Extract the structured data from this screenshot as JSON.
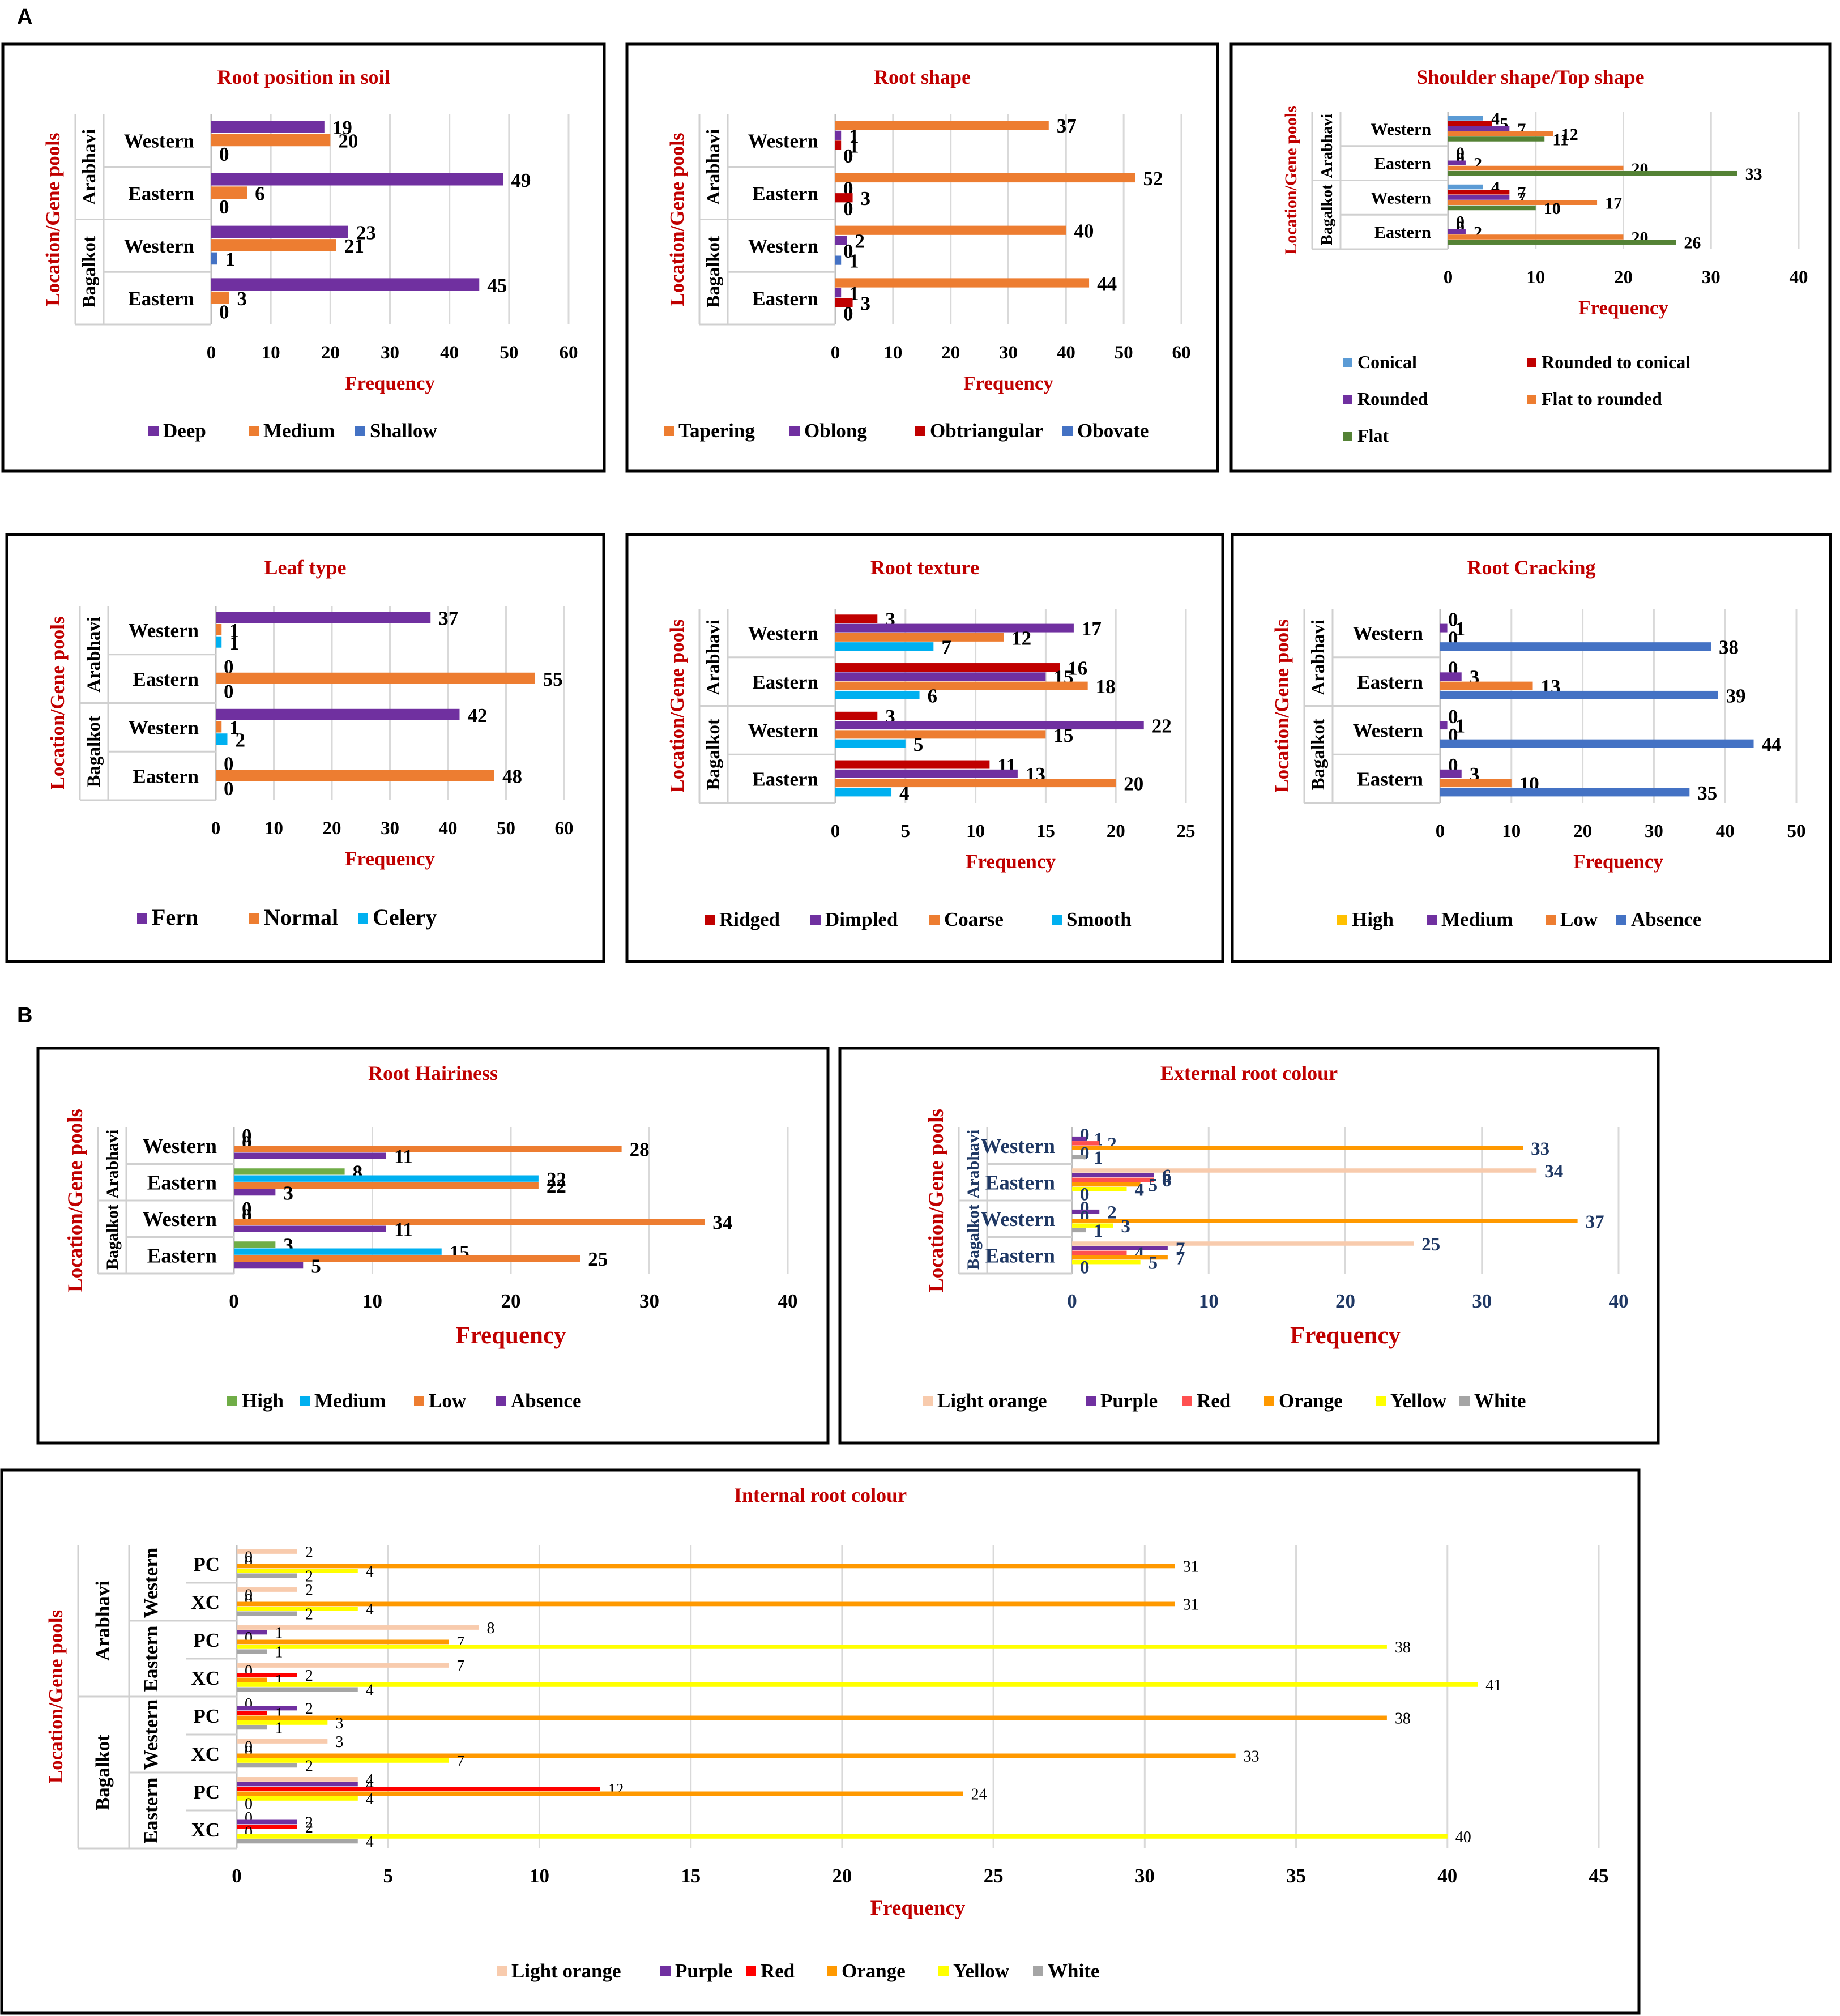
{
  "panels": [
    {
      "label": "A"
    },
    {
      "label": "B"
    }
  ],
  "colors": {
    "title": "#C00000",
    "ylabel": "#C00000",
    "xlabel": "#C00000",
    "ylabel_blue": "#1F3864",
    "grid": "#D9D9D9"
  },
  "chart_data": [
    {
      "id": "root_position",
      "type": "bar",
      "orientation": "horizontal",
      "title": "Root position in soil",
      "xlabel": "Frequency",
      "ylabel": "Location/Gene pools",
      "groups": [
        "Arabhavi",
        "Bagalkot"
      ],
      "categories": [
        "Western",
        "Eastern",
        "Western",
        "Eastern"
      ],
      "xlim": [
        0,
        60
      ],
      "xticks": [
        0,
        10,
        20,
        30,
        40,
        50,
        60
      ],
      "series": [
        {
          "name": "Deep",
          "color": "#7030A0",
          "values": [
            19,
            49,
            23,
            45
          ]
        },
        {
          "name": "Medium",
          "color": "#ED7D31",
          "values": [
            20,
            6,
            21,
            3
          ]
        },
        {
          "name": "Shallow",
          "color": "#4472C4",
          "values": [
            0,
            0,
            1,
            0
          ]
        }
      ]
    },
    {
      "id": "root_shape",
      "type": "bar",
      "orientation": "horizontal",
      "title": "Root shape",
      "xlabel": "Frequency",
      "ylabel": "Location/Gene pools",
      "groups": [
        "Arabhavi",
        "Bagalkot"
      ],
      "categories": [
        "Western",
        "Eastern",
        "Western",
        "Eastern"
      ],
      "xlim": [
        0,
        60
      ],
      "xticks": [
        0,
        10,
        20,
        30,
        40,
        50,
        60
      ],
      "series": [
        {
          "name": "Tapering",
          "color": "#ED7D31",
          "values": [
            37,
            52,
            40,
            44
          ]
        },
        {
          "name": "Oblong",
          "color": "#7030A0",
          "values": [
            1,
            0,
            2,
            1
          ]
        },
        {
          "name": "Obtriangular",
          "color": "#C00000",
          "values": [
            1,
            3,
            0,
            3
          ]
        },
        {
          "name": "Obovate",
          "color": "#4472C4",
          "values": [
            0,
            0,
            1,
            0
          ]
        }
      ]
    },
    {
      "id": "shoulder_shape",
      "type": "bar",
      "orientation": "horizontal",
      "title": "Shoulder shape/Top shape",
      "xlabel": "Frequency",
      "ylabel": "Location/Gene pools",
      "groups": [
        "Arabhavi",
        "Bagalkot"
      ],
      "categories": [
        "Western",
        "Eastern",
        "Western",
        "Eastern"
      ],
      "xlim": [
        0,
        40
      ],
      "xticks": [
        0,
        10,
        20,
        30,
        40
      ],
      "series": [
        {
          "name": "Conical",
          "color": "#5B9BD5",
          "values": [
            4,
            0,
            4,
            0
          ]
        },
        {
          "name": "Rounded to conical",
          "color": "#C00000",
          "values": [
            5,
            0,
            7,
            0
          ]
        },
        {
          "name": "Rounded",
          "color": "#7030A0",
          "values": [
            7,
            2,
            7,
            2
          ]
        },
        {
          "name": "Flat to rounded",
          "color": "#ED7D31",
          "values": [
            12,
            20,
            17,
            20
          ]
        },
        {
          "name": "Flat",
          "color": "#548235",
          "values": [
            11,
            33,
            10,
            26
          ]
        }
      ]
    },
    {
      "id": "leaf_type",
      "type": "bar",
      "orientation": "horizontal",
      "title": "Leaf type",
      "xlabel": "Frequency",
      "ylabel": "Location/Gene pools",
      "groups": [
        "Arabhavi",
        "Bagalkot"
      ],
      "categories": [
        "Western",
        "Eastern",
        "Western",
        "Eastern"
      ],
      "xlim": [
        0,
        60
      ],
      "xticks": [
        0,
        10,
        20,
        30,
        40,
        50,
        60
      ],
      "series": [
        {
          "name": "Fern",
          "color": "#7030A0",
          "values": [
            37,
            0,
            42,
            0
          ]
        },
        {
          "name": "Normal",
          "color": "#ED7D31",
          "values": [
            1,
            55,
            1,
            48
          ]
        },
        {
          "name": "Celery",
          "color": "#00B0F0",
          "values": [
            1,
            0,
            2,
            0
          ]
        }
      ]
    },
    {
      "id": "root_texture",
      "type": "bar",
      "orientation": "horizontal",
      "title": "Root texture",
      "xlabel": "Frequency",
      "ylabel": "Location/Gene pools",
      "groups": [
        "Arabhavi",
        "Bagalkot"
      ],
      "categories": [
        "Western",
        "Eastern",
        "Western",
        "Eastern"
      ],
      "xlim": [
        0,
        25
      ],
      "xticks": [
        0,
        5,
        10,
        15,
        20,
        25
      ],
      "series": [
        {
          "name": "Ridged",
          "color": "#C00000",
          "values": [
            3,
            16,
            3,
            11
          ]
        },
        {
          "name": "Dimpled",
          "color": "#7030A0",
          "values": [
            17,
            15,
            22,
            13
          ]
        },
        {
          "name": "Coarse",
          "color": "#ED7D31",
          "values": [
            12,
            18,
            15,
            20
          ]
        },
        {
          "name": "Smooth",
          "color": "#00B0F0",
          "values": [
            7,
            6,
            5,
            4
          ]
        }
      ]
    },
    {
      "id": "root_cracking",
      "type": "bar",
      "orientation": "horizontal",
      "title": "Root Cracking",
      "xlabel": "Frequency",
      "ylabel": "Location/Gene pools",
      "groups": [
        "Arabhavi",
        "Bagalkot"
      ],
      "categories": [
        "Western",
        "Eastern",
        "Western",
        "Eastern"
      ],
      "xlim": [
        0,
        50
      ],
      "xticks": [
        0,
        10,
        20,
        30,
        40,
        50
      ],
      "series": [
        {
          "name": "High",
          "color": "#FFC000",
          "values": [
            0,
            0,
            0,
            0
          ]
        },
        {
          "name": "Medium",
          "color": "#7030A0",
          "values": [
            1,
            3,
            1,
            3
          ]
        },
        {
          "name": "Low",
          "color": "#ED7D31",
          "values": [
            0,
            13,
            0,
            10
          ]
        },
        {
          "name": "Absence",
          "color": "#4472C4",
          "values": [
            38,
            39,
            44,
            35
          ]
        }
      ]
    },
    {
      "id": "root_hairiness",
      "type": "bar",
      "orientation": "horizontal",
      "title": "Root Hairiness",
      "xlabel": "Frequency",
      "ylabel": "Location/Gene pools",
      "groups": [
        "Arabhavi",
        "Bagalkot"
      ],
      "categories": [
        "Western",
        "Eastern",
        "Western",
        "Eastern"
      ],
      "xlim": [
        0,
        40
      ],
      "xticks": [
        0,
        10,
        20,
        30,
        40
      ],
      "series": [
        {
          "name": "High",
          "color": "#70AD47",
          "values": [
            0,
            8,
            0,
            3
          ]
        },
        {
          "name": "Medium",
          "color": "#00B0F0",
          "values": [
            0,
            22,
            0,
            15
          ]
        },
        {
          "name": "Low",
          "color": "#ED7D31",
          "values": [
            28,
            22,
            34,
            25
          ]
        },
        {
          "name": "Absence",
          "color": "#7030A0",
          "values": [
            11,
            3,
            11,
            5
          ]
        }
      ]
    },
    {
      "id": "external_colour",
      "type": "bar",
      "orientation": "horizontal",
      "title": "External root colour",
      "xlabel": "Frequency",
      "ylabel": "Location/Gene pools",
      "groups": [
        "Arabhavi",
        "Bagalkot"
      ],
      "categories": [
        "Western",
        "Eastern",
        "Western",
        "Eastern"
      ],
      "xlim": [
        0,
        40
      ],
      "xticks": [
        0,
        10,
        20,
        30,
        40
      ],
      "series": [
        {
          "name": "Light orange",
          "color": "#F8CBAD",
          "values": [
            0,
            34,
            0,
            25
          ]
        },
        {
          "name": "Purple",
          "color": "#7030A0",
          "values": [
            1,
            6,
            2,
            7
          ]
        },
        {
          "name": "Red",
          "color": "#FF5050",
          "values": [
            2,
            6,
            0,
            4
          ]
        },
        {
          "name": "Orange",
          "color": "#FF9900",
          "values": [
            33,
            5,
            37,
            7
          ]
        },
        {
          "name": "Yellow",
          "color": "#FFFF00",
          "values": [
            0,
            4,
            3,
            5
          ]
        },
        {
          "name": "White",
          "color": "#A5A5A5",
          "values": [
            1,
            0,
            1,
            0
          ]
        }
      ]
    },
    {
      "id": "internal_colour",
      "type": "bar",
      "orientation": "horizontal",
      "title": "Internal root colour",
      "xlabel": "Frequency",
      "ylabel": "Location/Gene pools",
      "groups": [
        "Arabhavi",
        "Bagalkot"
      ],
      "subgroups": [
        "Western",
        "Eastern",
        "Western",
        "Eastern"
      ],
      "categories": [
        "PC",
        "XC",
        "PC",
        "XC",
        "PC",
        "XC",
        "PC",
        "XC"
      ],
      "xlim": [
        0,
        45
      ],
      "xticks": [
        0,
        5,
        10,
        15,
        20,
        25,
        30,
        35,
        40,
        45
      ],
      "series": [
        {
          "name": "Light orange",
          "color": "#F8CBAD",
          "values": [
            2,
            2,
            8,
            7,
            0,
            3,
            4,
            0
          ]
        },
        {
          "name": "Purple",
          "color": "#7030A0",
          "values": [
            0,
            0,
            1,
            0,
            2,
            0,
            4,
            2
          ]
        },
        {
          "name": "Red",
          "color": "#FF0000",
          "values": [
            0,
            0,
            0,
            2,
            1,
            0,
            12,
            2
          ]
        },
        {
          "name": "Orange",
          "color": "#FF9900",
          "values": [
            31,
            31,
            7,
            1,
            38,
            33,
            24,
            0
          ]
        },
        {
          "name": "Yellow",
          "color": "#FFFF00",
          "values": [
            4,
            4,
            38,
            41,
            3,
            7,
            4,
            40
          ]
        },
        {
          "name": "White",
          "color": "#A5A5A5",
          "values": [
            2,
            2,
            1,
            4,
            1,
            2,
            0,
            4
          ]
        }
      ]
    }
  ]
}
